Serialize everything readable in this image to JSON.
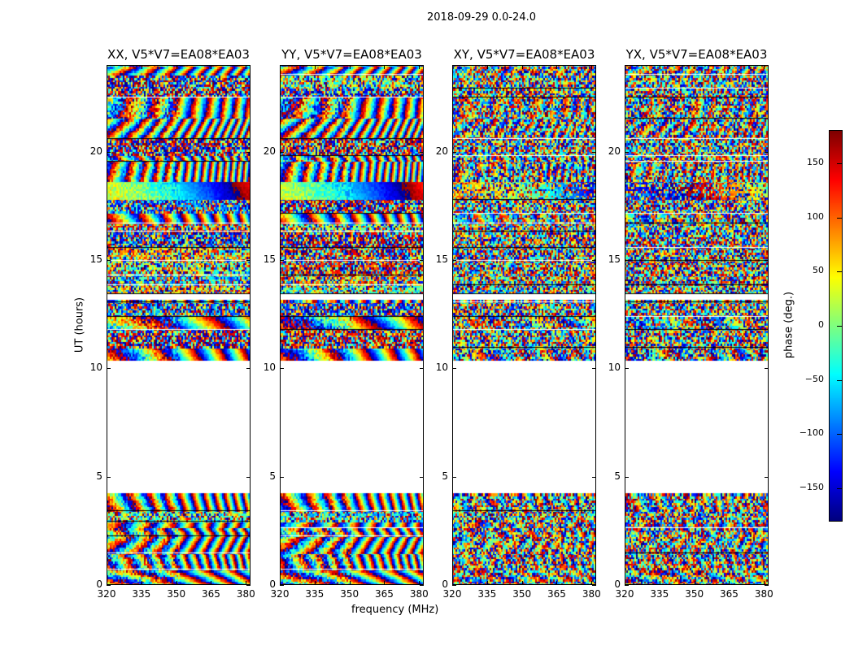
{
  "chart_data": {
    "type": "heatmap",
    "title": "2018-09-29 0.0-24.0",
    "xlabel": "frequency (MHz)",
    "ylabel": "UT (hours)",
    "xlim": [
      320,
      382
    ],
    "ylim": [
      0,
      24
    ],
    "xticks": [
      320,
      335,
      350,
      365,
      380
    ],
    "yticks": [
      0,
      5,
      10,
      15,
      20
    ],
    "colormap": "jet",
    "colorbar": {
      "label": "phase (deg.)",
      "range": [
        -180,
        180
      ],
      "ticks": [
        150,
        100,
        50,
        0,
        -50,
        -100,
        -150
      ]
    },
    "no_data_ut_ranges": [
      [
        4.2,
        10.3
      ],
      [
        13.1,
        13.4
      ]
    ],
    "panels": [
      {
        "title": "XX, V5*V7=EA08*EA03"
      },
      {
        "title": "YY, V5*V7=EA08*EA03"
      },
      {
        "title": "XY, V5*V7=EA08*EA03"
      },
      {
        "title": "YX, V5*V7=EA08*EA03"
      }
    ]
  }
}
